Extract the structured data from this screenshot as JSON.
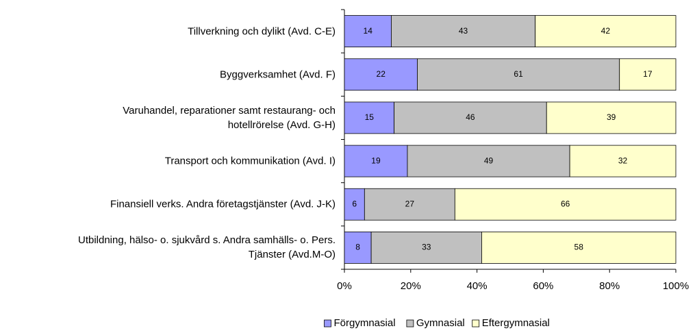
{
  "chart_data": {
    "type": "bar",
    "orientation": "horizontal",
    "stacked": "percent",
    "categories": [
      "Tillverkning och dylikt (Avd. C-E)",
      "Byggverksamhet (Avd. F)",
      "Varuhandel, reparationer samt restaurang- och\nhotellrörelse (Avd. G-H)",
      "Transport och kommunikation (Avd. I)",
      "Finansiell verks. Andra företagstjänster (Avd. J-K)",
      "Utbildning, hälso- o. sjukvård s. Andra samhälls- o. Pers.\nTjänster (Avd.M-O)"
    ],
    "series": [
      {
        "name": "Förgymnasial",
        "color": "#9999ff",
        "values": [
          14,
          22,
          15,
          19,
          6,
          8
        ]
      },
      {
        "name": "Gymnasial",
        "color": "#c0c0c0",
        "values": [
          43,
          61,
          46,
          49,
          27,
          33
        ]
      },
      {
        "name": "Eftergymnasial",
        "color": "#ffffcc",
        "values": [
          42,
          17,
          39,
          32,
          66,
          58
        ]
      }
    ],
    "xlim": [
      0,
      100
    ],
    "xticks": [
      {
        "value": 0,
        "label": "0%"
      },
      {
        "value": 20,
        "label": "20%"
      },
      {
        "value": 40,
        "label": "40%"
      },
      {
        "value": 60,
        "label": "60%"
      },
      {
        "value": 80,
        "label": "80%"
      },
      {
        "value": 100,
        "label": "100%"
      }
    ],
    "legend": "bottom"
  }
}
